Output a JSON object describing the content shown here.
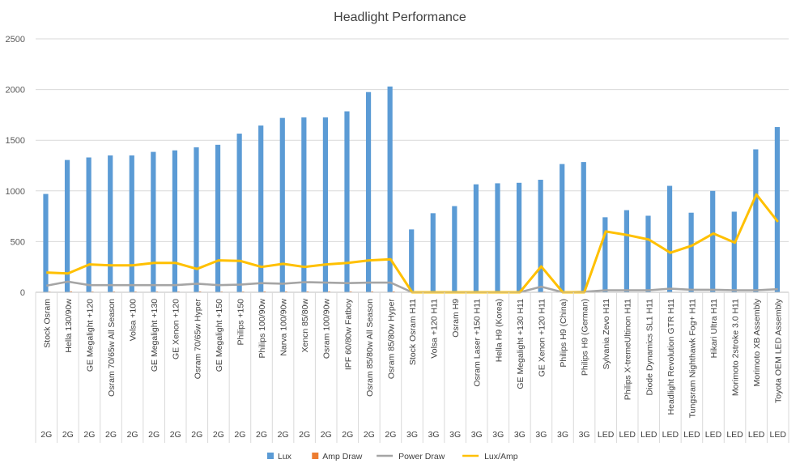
{
  "chart_data": {
    "type": "bar",
    "title": "Headlight Performance",
    "xlabel": "",
    "ylabel": "",
    "ylim": [
      0,
      2500
    ],
    "yticks": [
      0,
      500,
      1000,
      1500,
      2000,
      2500
    ],
    "grid": true,
    "legend_position": "bottom",
    "categories": [
      "Stock Osram",
      "Hella 130/90w",
      "GE Megalight +120",
      "Osram 70/65w All Season",
      "Volsa +100",
      "GE Megalight +130",
      "GE Xenon +120",
      "Osram 70/65w Hyper",
      "GE Megalight +150",
      "Philips +150",
      "Philips 100/90w",
      "Narva 100/90w",
      "Xencn 85/80w",
      "Osram 100/90w",
      "IPF 60/80w Fatboy",
      "Osram 85/80w All Season",
      "Osram 85/80w Hyper",
      "Stock Osram H11",
      "Volsa +120 H11",
      "Osram H9",
      "Osram Laser +150 H11",
      "Hella H9 (Korea)",
      "GE Megalight +130 H11",
      "GE Xenon +120 H11",
      "Philips H9 (China)",
      "Philips H9 (German)",
      "Sylvania Zevo H11",
      "Philips X-tremeUltinon H11",
      "Diode Dynamics SL1 H11",
      "Headlight Revolution GTR H11",
      "Tungsram Nighthawk Fog+ H11",
      "Hikari Ultra H11",
      "Morimoto 2stroke 3.0 H11",
      "Morimoto XB Assembly",
      "Toyota OEM LED Assembly"
    ],
    "groups": [
      "2G",
      "2G",
      "2G",
      "2G",
      "2G",
      "2G",
      "2G",
      "2G",
      "2G",
      "2G",
      "2G",
      "2G",
      "2G",
      "2G",
      "2G",
      "2G",
      "2G",
      "3G",
      "3G",
      "3G",
      "3G",
      "3G",
      "3G",
      "3G",
      "3G",
      "3G",
      "LED",
      "LED",
      "LED",
      "LED",
      "LED",
      "LED",
      "LED",
      "LED",
      "LED"
    ],
    "series": [
      {
        "name": "Lux",
        "type": "bar",
        "color": "#5B9BD5",
        "values": [
          970,
          1305,
          1330,
          1350,
          1350,
          1385,
          1400,
          1430,
          1455,
          1565,
          1645,
          1720,
          1725,
          1725,
          1785,
          1975,
          2030,
          620,
          780,
          850,
          1065,
          1075,
          1080,
          1110,
          1265,
          1285,
          740,
          810,
          755,
          1050,
          785,
          1000,
          795,
          1410,
          1630
        ]
      },
      {
        "name": "Amp Draw",
        "type": "bar",
        "color": "#ED7D31",
        "values": [
          6,
          9,
          7,
          7,
          7,
          7,
          7,
          8,
          7,
          7,
          8,
          8,
          8,
          8,
          8,
          8,
          8,
          0,
          0,
          0,
          0,
          0,
          0,
          6,
          0,
          0,
          2,
          2,
          2,
          3,
          2,
          2,
          2,
          2,
          3
        ]
      },
      {
        "name": "Power Draw",
        "type": "line",
        "color": "#A5A5A5",
        "values": [
          65,
          105,
          70,
          70,
          70,
          70,
          70,
          85,
          70,
          75,
          90,
          85,
          100,
          95,
          90,
          95,
          95,
          0,
          0,
          0,
          0,
          0,
          0,
          55,
          0,
          5,
          20,
          20,
          20,
          35,
          25,
          25,
          20,
          20,
          30
        ]
      },
      {
        "name": "Lux/Amp",
        "type": "line",
        "color": "#FFC000",
        "values": [
          195,
          185,
          275,
          265,
          265,
          290,
          290,
          230,
          315,
          310,
          250,
          280,
          250,
          275,
          290,
          315,
          325,
          0,
          0,
          0,
          0,
          0,
          0,
          255,
          0,
          0,
          600,
          565,
          520,
          390,
          460,
          580,
          490,
          965,
          695
        ]
      }
    ]
  }
}
